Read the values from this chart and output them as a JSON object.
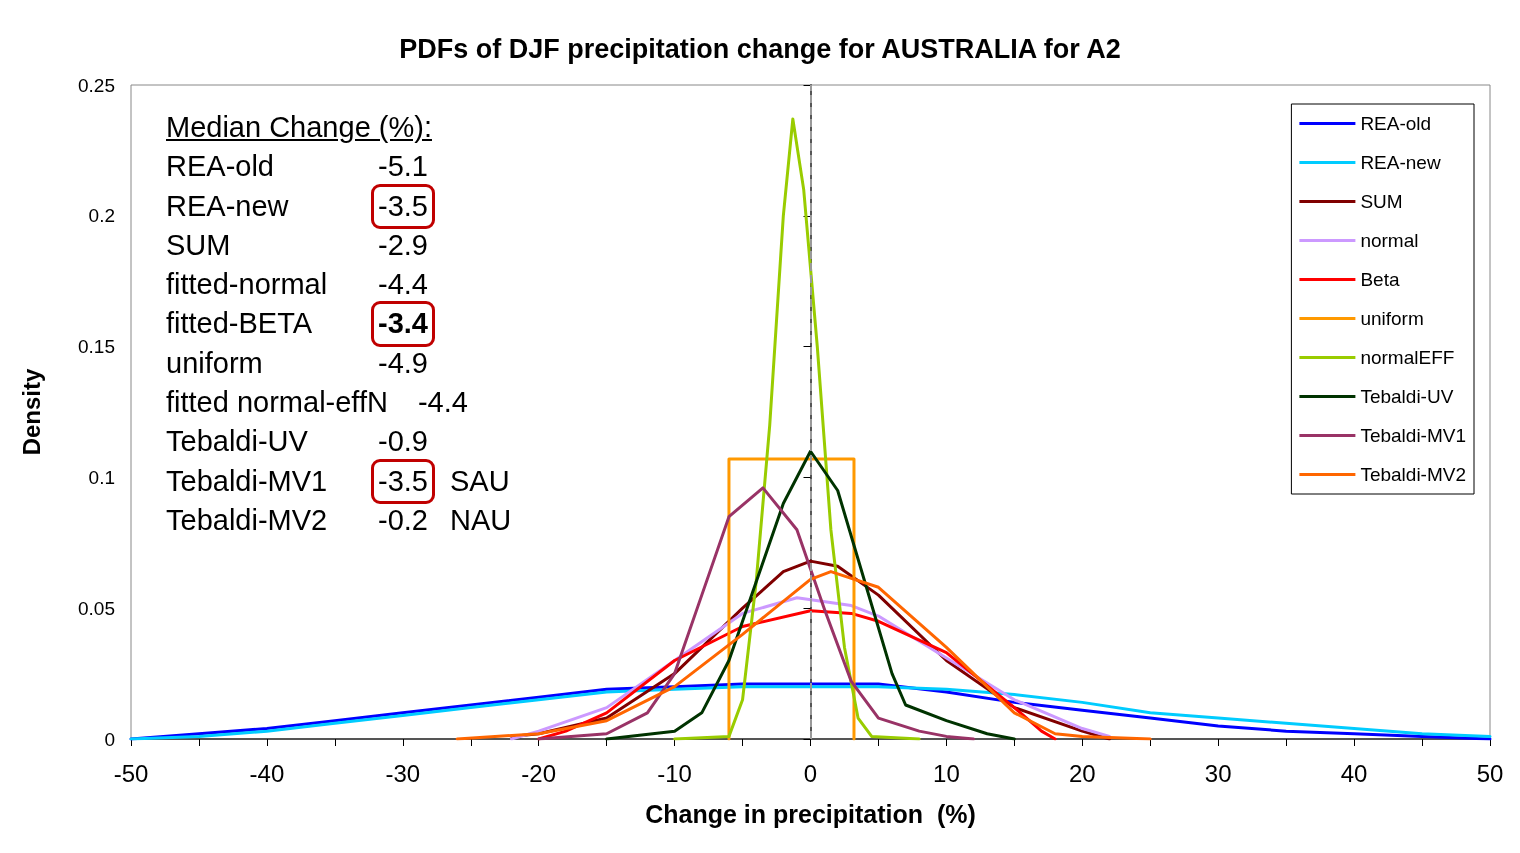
{
  "chart_data": {
    "type": "line",
    "title": "PDFs of DJF precipitation change for AUSTRALIA for A2",
    "xlabel": "Change in precipitation  (%)",
    "ylabel": "Density",
    "xlim": [
      -50,
      50
    ],
    "xticks": [
      -50,
      {
        "value": -45,
        "label": null
      },
      -40,
      {
        "value": -35,
        "label": null
      },
      -30,
      {
        "value": -25,
        "label": null
      },
      -20,
      {
        "value": -15,
        "label": null
      },
      -10,
      {
        "value": -5,
        "label": null
      },
      0,
      {
        "value": 5,
        "label": null
      },
      10,
      {
        "value": 15,
        "label": null
      },
      20,
      {
        "value": 25,
        "label": null
      },
      30,
      {
        "value": 35,
        "label": null
      },
      40,
      {
        "value": 45,
        "label": null
      },
      50
    ],
    "ylim": [
      0,
      0.25
    ],
    "yticks": [
      0,
      0.05,
      0.1,
      0.15,
      0.2,
      0.25
    ],
    "grid": false,
    "legend": "top right",
    "marker": "none",
    "line_style": "solid",
    "ref_lines": [
      {
        "axis": "x",
        "value": 0,
        "color": "#999999",
        "line_style": "dashed"
      }
    ],
    "annotations": [
      "Median Change  (%):",
      "REA-old  -5.1",
      "REA-new  -3.5",
      "SUM  -2.9",
      "fitted-normal  -4.4",
      "fitted-BETA  -3.4",
      "uniform  -4.9",
      "fitted normal-effN  -4.4",
      "Tebaldi-UV  -0.9",
      "Tebaldi-MV1  -3.5  SAU",
      "Tebaldi-MV2  -0.2  NAU"
    ],
    "series": [
      {
        "name": "REA-old",
        "color": "#0000ff",
        "x": [
          -50,
          -45,
          -40,
          -35,
          -30,
          -25,
          -20,
          -15,
          -10,
          -5,
          0,
          5,
          10,
          15,
          20,
          25,
          30,
          35,
          40,
          45,
          50
        ],
        "values": [
          0,
          0.002,
          0.004,
          0.007,
          0.01,
          0.013,
          0.016,
          0.019,
          0.02,
          0.021,
          0.021,
          0.021,
          0.018,
          0.014,
          0.011,
          0.008,
          0.005,
          0.003,
          0.002,
          0.001,
          0
        ]
      },
      {
        "name": "REA-new",
        "color": "#00ccff",
        "x": [
          -50,
          -45,
          -40,
          -35,
          -30,
          -25,
          -20,
          -15,
          -10,
          -5,
          0,
          5,
          10,
          15,
          20,
          25,
          30,
          35,
          40,
          45,
          50
        ],
        "values": [
          0,
          0.001,
          0.003,
          0.006,
          0.009,
          0.012,
          0.015,
          0.018,
          0.019,
          0.02,
          0.02,
          0.02,
          0.019,
          0.017,
          0.014,
          0.01,
          0.008,
          0.006,
          0.004,
          0.002,
          0.001
        ]
      },
      {
        "name": "SUM",
        "color": "#800000",
        "x": [
          -22,
          -20,
          -15,
          -10,
          -5,
          -2,
          0,
          2,
          5,
          10,
          15,
          20,
          22
        ],
        "values": [
          0.001,
          0.002,
          0.008,
          0.025,
          0.05,
          0.064,
          0.068,
          0.066,
          0.055,
          0.03,
          0.012,
          0.003,
          0
        ]
      },
      {
        "name": "normal",
        "color": "#cc99ff",
        "x": [
          -22,
          -20,
          -15,
          -10,
          -5,
          -1,
          3,
          5,
          10,
          15,
          20,
          22
        ],
        "values": [
          0,
          0.003,
          0.012,
          0.03,
          0.048,
          0.054,
          0.051,
          0.047,
          0.031,
          0.015,
          0.004,
          0.001
        ]
      },
      {
        "name": "Beta",
        "color": "#ff0000",
        "x": [
          -20,
          -18,
          -15,
          -10,
          -5,
          0,
          3,
          5,
          10,
          15,
          17,
          18
        ],
        "values": [
          0,
          0.003,
          0.01,
          0.03,
          0.043,
          0.049,
          0.048,
          0.045,
          0.033,
          0.012,
          0.003,
          0
        ]
      },
      {
        "name": "uniform",
        "color": "#ff9900",
        "x": [
          -6,
          -6,
          3.2,
          3.2
        ],
        "values": [
          0,
          0.107,
          0.107,
          0
        ]
      },
      {
        "name": "normalEFF",
        "color": "#99cc00",
        "x": [
          -10,
          -6,
          -5,
          -4,
          -3,
          -2,
          -1.3,
          -0.5,
          0.5,
          1.5,
          2.5,
          3.5,
          4.5,
          8
        ],
        "values": [
          0,
          0.001,
          0.015,
          0.06,
          0.12,
          0.2,
          0.237,
          0.21,
          0.15,
          0.08,
          0.035,
          0.008,
          0.001,
          0
        ]
      },
      {
        "name": "Tebaldi-UV",
        "color": "#003300",
        "x": [
          -15,
          -10,
          -8,
          -6,
          -4,
          -2,
          0,
          2,
          4,
          6,
          7,
          10,
          13,
          15
        ],
        "values": [
          0,
          0.003,
          0.01,
          0.03,
          0.06,
          0.09,
          0.11,
          0.095,
          0.06,
          0.025,
          0.013,
          0.007,
          0.002,
          0
        ]
      },
      {
        "name": "Tebaldi-MV1",
        "color": "#993366",
        "x": [
          -20,
          -15,
          -12,
          -10,
          -8,
          -6,
          -3.5,
          -1,
          1,
          3,
          5,
          8,
          10,
          12
        ],
        "values": [
          0,
          0.002,
          0.01,
          0.025,
          0.055,
          0.085,
          0.096,
          0.08,
          0.05,
          0.022,
          0.008,
          0.003,
          0.001,
          0
        ]
      },
      {
        "name": "Tebaldi-MV2",
        "color": "#ff6600",
        "x": [
          -26,
          -20,
          -15,
          -10,
          -5,
          0,
          1.5,
          5,
          10,
          15,
          18,
          20,
          25
        ],
        "values": [
          0,
          0.002,
          0.007,
          0.02,
          0.04,
          0.061,
          0.064,
          0.058,
          0.035,
          0.01,
          0.002,
          0.001,
          0
        ]
      }
    ]
  }
}
